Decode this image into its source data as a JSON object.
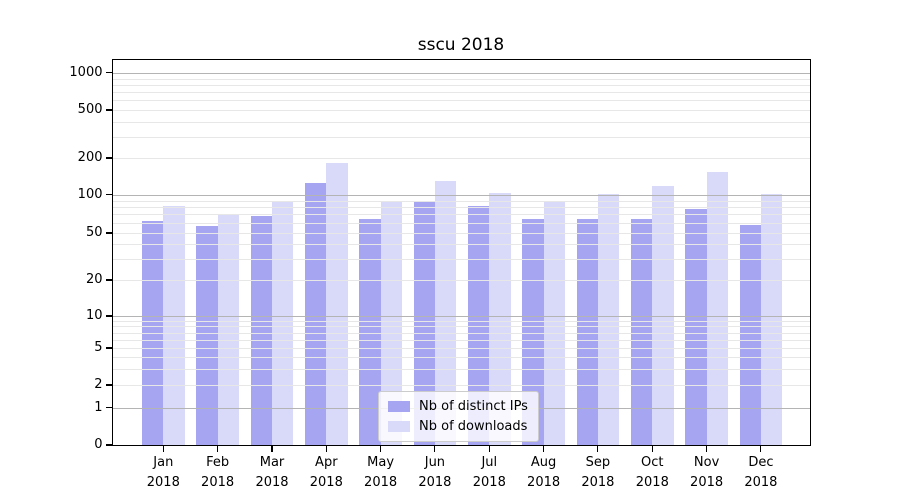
{
  "title": "sscu 2018",
  "legend": {
    "entries": [
      {
        "label": "Nb of distinct IPs"
      },
      {
        "label": "Nb of downloads"
      }
    ]
  },
  "chart_data": {
    "type": "bar",
    "title": "sscu 2018",
    "categories": [
      {
        "month": "Jan",
        "year": "2018"
      },
      {
        "month": "Feb",
        "year": "2018"
      },
      {
        "month": "Mar",
        "year": "2018"
      },
      {
        "month": "Apr",
        "year": "2018"
      },
      {
        "month": "May",
        "year": "2018"
      },
      {
        "month": "Jun",
        "year": "2018"
      },
      {
        "month": "Jul",
        "year": "2018"
      },
      {
        "month": "Aug",
        "year": "2018"
      },
      {
        "month": "Sep",
        "year": "2018"
      },
      {
        "month": "Oct",
        "year": "2018"
      },
      {
        "month": "Nov",
        "year": "2018"
      },
      {
        "month": "Dec",
        "year": "2018"
      }
    ],
    "series": [
      {
        "name": "Nb of distinct IPs",
        "color": "#a5a5f2",
        "values": [
          62,
          57,
          68,
          126,
          64,
          88,
          81,
          65,
          64,
          64,
          77,
          58
        ]
      },
      {
        "name": "Nb of downloads",
        "color": "#d9d9f9",
        "values": [
          82,
          69,
          88,
          181,
          90,
          129,
          103,
          87,
          102,
          118,
          155,
          102
        ]
      }
    ],
    "xlabel": "",
    "ylabel": "",
    "yscale": "symlog",
    "y_ticks": [
      0,
      1,
      2,
      5,
      10,
      20,
      50,
      100,
      200,
      500,
      1000
    ],
    "y_minor_gridlines": [
      2,
      3,
      4,
      5,
      6,
      7,
      8,
      9,
      20,
      30,
      40,
      50,
      60,
      70,
      80,
      90,
      200,
      300,
      400,
      500,
      600,
      700,
      800,
      900
    ],
    "y_major_gridlines": [
      1,
      10,
      100,
      1000
    ],
    "ylim": [
      0,
      1270
    ],
    "grid": true,
    "legend_position": "lower center",
    "colors": {
      "major_grid": "#b4b4b4",
      "minor_grid": "#e7e7e7",
      "spine": "#000000"
    }
  }
}
